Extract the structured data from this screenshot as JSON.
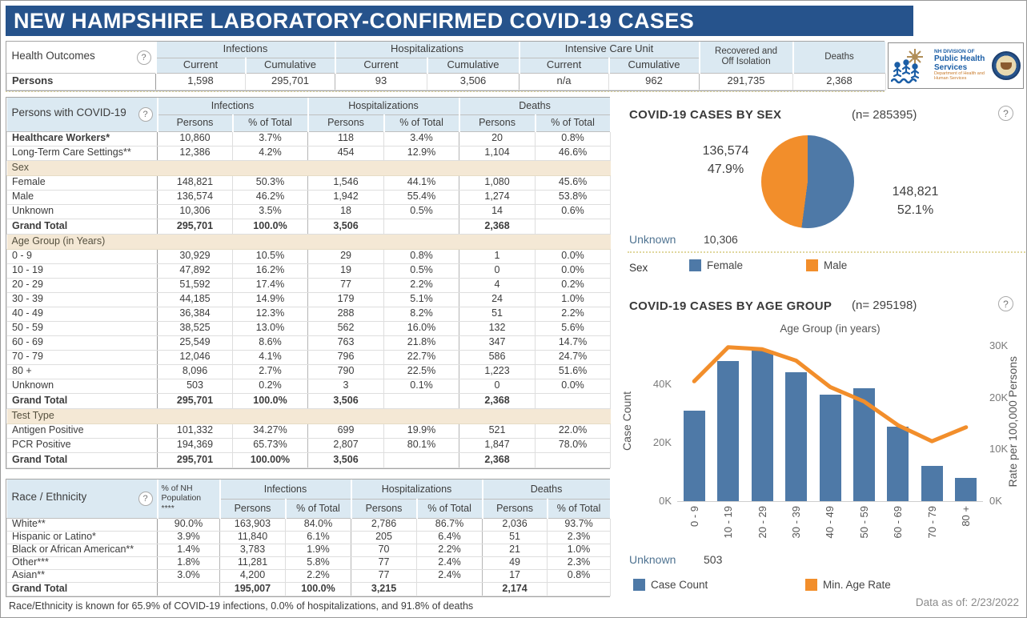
{
  "title": "NEW HAMPSHIRE LABORATORY-CONFIRMED COVID-19 CASES",
  "icons": {
    "help_glyph": "?"
  },
  "logo": {
    "line1": "NH DIVISION OF",
    "line2": "Public Health Services",
    "line3": "Department of Health and Human Services"
  },
  "health_outcomes": {
    "label": "Health Outcomes",
    "groups": [
      "Infections",
      "Hospitalizations",
      "Intensive Care Unit"
    ],
    "sub_headers": [
      "Current",
      "Cumulative"
    ],
    "singles": [
      "Recovered and\nOff Isolation",
      "Deaths"
    ],
    "row_label": "Persons",
    "values": [
      "1,598",
      "295,701",
      "93",
      "3,506",
      "n/a",
      "962",
      "291,735",
      "2,368"
    ]
  },
  "persons_table": {
    "label": "Persons with COVID-19",
    "groups": [
      "Infections",
      "Hospitalizations",
      "Deaths"
    ],
    "sub_headers": [
      "Persons",
      "% of Total"
    ],
    "rows": [
      {
        "type": "data",
        "bold": true,
        "label": "Healthcare Workers*",
        "cells": [
          "10,860",
          "3.7%",
          "118",
          "3.4%",
          "20",
          "0.8%"
        ]
      },
      {
        "type": "data",
        "label": "Long-Term Care Settings**",
        "cells": [
          "12,386",
          "4.2%",
          "454",
          "12.9%",
          "1,104",
          "46.6%"
        ]
      },
      {
        "type": "section",
        "label": "Sex"
      },
      {
        "type": "data",
        "label": "Female",
        "cells": [
          "148,821",
          "50.3%",
          "1,546",
          "44.1%",
          "1,080",
          "45.6%"
        ]
      },
      {
        "type": "data",
        "label": "Male",
        "cells": [
          "136,574",
          "46.2%",
          "1,942",
          "55.4%",
          "1,274",
          "53.8%"
        ]
      },
      {
        "type": "data",
        "label": "Unknown",
        "cells": [
          "10,306",
          "3.5%",
          "18",
          "0.5%",
          "14",
          "0.6%"
        ]
      },
      {
        "type": "total",
        "label": "Grand Total",
        "cells": [
          "295,701",
          "100.0%",
          "3,506",
          "",
          "2,368",
          ""
        ]
      },
      {
        "type": "section",
        "label": "Age Group (in Years)"
      },
      {
        "type": "data",
        "label": "0 - 9",
        "cells": [
          "30,929",
          "10.5%",
          "29",
          "0.8%",
          "1",
          "0.0%"
        ]
      },
      {
        "type": "data",
        "label": "10 - 19",
        "cells": [
          "47,892",
          "16.2%",
          "19",
          "0.5%",
          "0",
          "0.0%"
        ]
      },
      {
        "type": "data",
        "label": "20 - 29",
        "cells": [
          "51,592",
          "17.4%",
          "77",
          "2.2%",
          "4",
          "0.2%"
        ]
      },
      {
        "type": "data",
        "label": "30 - 39",
        "cells": [
          "44,185",
          "14.9%",
          "179",
          "5.1%",
          "24",
          "1.0%"
        ]
      },
      {
        "type": "data",
        "label": "40 - 49",
        "cells": [
          "36,384",
          "12.3%",
          "288",
          "8.2%",
          "51",
          "2.2%"
        ]
      },
      {
        "type": "data",
        "label": "50 - 59",
        "cells": [
          "38,525",
          "13.0%",
          "562",
          "16.0%",
          "132",
          "5.6%"
        ]
      },
      {
        "type": "data",
        "label": "60 - 69",
        "cells": [
          "25,549",
          "8.6%",
          "763",
          "21.8%",
          "347",
          "14.7%"
        ]
      },
      {
        "type": "data",
        "label": "70 - 79",
        "cells": [
          "12,046",
          "4.1%",
          "796",
          "22.7%",
          "586",
          "24.7%"
        ]
      },
      {
        "type": "data",
        "label": "80 +",
        "cells": [
          "8,096",
          "2.7%",
          "790",
          "22.5%",
          "1,223",
          "51.6%"
        ]
      },
      {
        "type": "data",
        "label": "Unknown",
        "cells": [
          "503",
          "0.2%",
          "3",
          "0.1%",
          "0",
          "0.0%"
        ]
      },
      {
        "type": "total",
        "label": "Grand Total",
        "cells": [
          "295,701",
          "100.0%",
          "3,506",
          "",
          "2,368",
          ""
        ]
      },
      {
        "type": "section",
        "label": "Test Type"
      },
      {
        "type": "data",
        "label": "Antigen Positive",
        "cells": [
          "101,332",
          "34.27%",
          "699",
          "19.9%",
          "521",
          "22.0%"
        ]
      },
      {
        "type": "data",
        "label": "PCR Positive",
        "cells": [
          "194,369",
          "65.73%",
          "2,807",
          "80.1%",
          "1,847",
          "78.0%"
        ]
      },
      {
        "type": "total",
        "label": "Grand Total",
        "cells": [
          "295,701",
          "100.00%",
          "3,506",
          "",
          "2,368",
          ""
        ]
      }
    ]
  },
  "race_table": {
    "label": "Race / Ethnicity",
    "pop_header": "% of NH\nPopulation\n****",
    "groups": [
      "Infections",
      "Hospitalizations",
      "Deaths"
    ],
    "sub_headers": [
      "Persons",
      "% of Total"
    ],
    "rows": [
      {
        "type": "data",
        "label": "White**",
        "cells": [
          "90.0%",
          "163,903",
          "84.0%",
          "2,786",
          "86.7%",
          "2,036",
          "93.7%"
        ]
      },
      {
        "type": "data",
        "label": "Hispanic or Latino*",
        "cells": [
          "3.9%",
          "11,840",
          "6.1%",
          "205",
          "6.4%",
          "51",
          "2.3%"
        ]
      },
      {
        "type": "data",
        "label": "Black or African American**",
        "cells": [
          "1.4%",
          "3,783",
          "1.9%",
          "70",
          "2.2%",
          "21",
          "1.0%"
        ]
      },
      {
        "type": "data",
        "label": "Other***",
        "cells": [
          "1.8%",
          "11,281",
          "5.8%",
          "77",
          "2.4%",
          "49",
          "2.3%"
        ]
      },
      {
        "type": "data",
        "label": "Asian**",
        "cells": [
          "3.0%",
          "4,200",
          "2.2%",
          "77",
          "2.4%",
          "17",
          "0.8%"
        ]
      },
      {
        "type": "total",
        "label": "Grand Total",
        "cells": [
          "",
          "195,007",
          "100.0%",
          "3,215",
          "",
          "2,174",
          ""
        ]
      }
    ],
    "footnote": "Race/Ethnicity is known for 65.9% of COVID-19 infections, 0.0% of hospitalizations, and 91.8% of deaths"
  },
  "chart_data": [
    {
      "type": "pie",
      "title": "COVID-19 CASES BY SEX",
      "n_label": "(n= 285395)",
      "n": 285395,
      "slices": [
        {
          "label": "Female",
          "value": 148821,
          "value_str": "148,821",
          "pct": 52.1,
          "pct_str": "52.1%",
          "color": "#4e79a7"
        },
        {
          "label": "Male",
          "value": 136574,
          "value_str": "136,574",
          "pct": 47.9,
          "pct_str": "47.9%",
          "color": "#f28e2b"
        }
      ],
      "unknown_label": "Unknown",
      "unknown_str": "10,306",
      "unknown": 10306,
      "legend_title": "Sex",
      "legend_position": "bottom"
    },
    {
      "type": "bar+line",
      "title": "COVID-19 CASES BY AGE GROUP",
      "n_label": "(n= 295198)",
      "n": 295198,
      "x_title": "Age Group (in years)",
      "categories": [
        "0 - 9",
        "10 - 19",
        "20 - 29",
        "30 - 39",
        "40 - 49",
        "50 - 59",
        "60 - 69",
        "70 - 79",
        "80 +"
      ],
      "series": [
        {
          "name": "Case Count",
          "mark": "bar",
          "axis": "left",
          "color": "#4e79a7",
          "values": [
            30929,
            47892,
            51592,
            44185,
            36384,
            38525,
            25549,
            12046,
            8096
          ]
        },
        {
          "name": "Min. Age Rate",
          "mark": "line",
          "axis": "right",
          "color": "#f28e2b",
          "values": [
            23200,
            29800,
            29400,
            27200,
            22100,
            19300,
            14700,
            11600,
            14300
          ]
        }
      ],
      "left_axis": {
        "label": "Case Count",
        "ticks": [
          {
            "text": "0K",
            "v": 0
          },
          {
            "text": "20K",
            "v": 20000
          },
          {
            "text": "40K",
            "v": 40000
          }
        ],
        "max": 54800
      },
      "right_axis": {
        "label": "Rate per 100,000 Persons",
        "ticks": [
          {
            "text": "0K",
            "v": 0
          },
          {
            "text": "10K",
            "v": 10000
          },
          {
            "text": "20K",
            "v": 20000
          },
          {
            "text": "30K",
            "v": 30000
          }
        ],
        "max": 31000
      },
      "grid": false,
      "unknown_label": "Unknown",
      "unknown_str": "503",
      "unknown": 503
    }
  ],
  "footer": {
    "data_as_of": "Data as of:  2/23/2022"
  }
}
